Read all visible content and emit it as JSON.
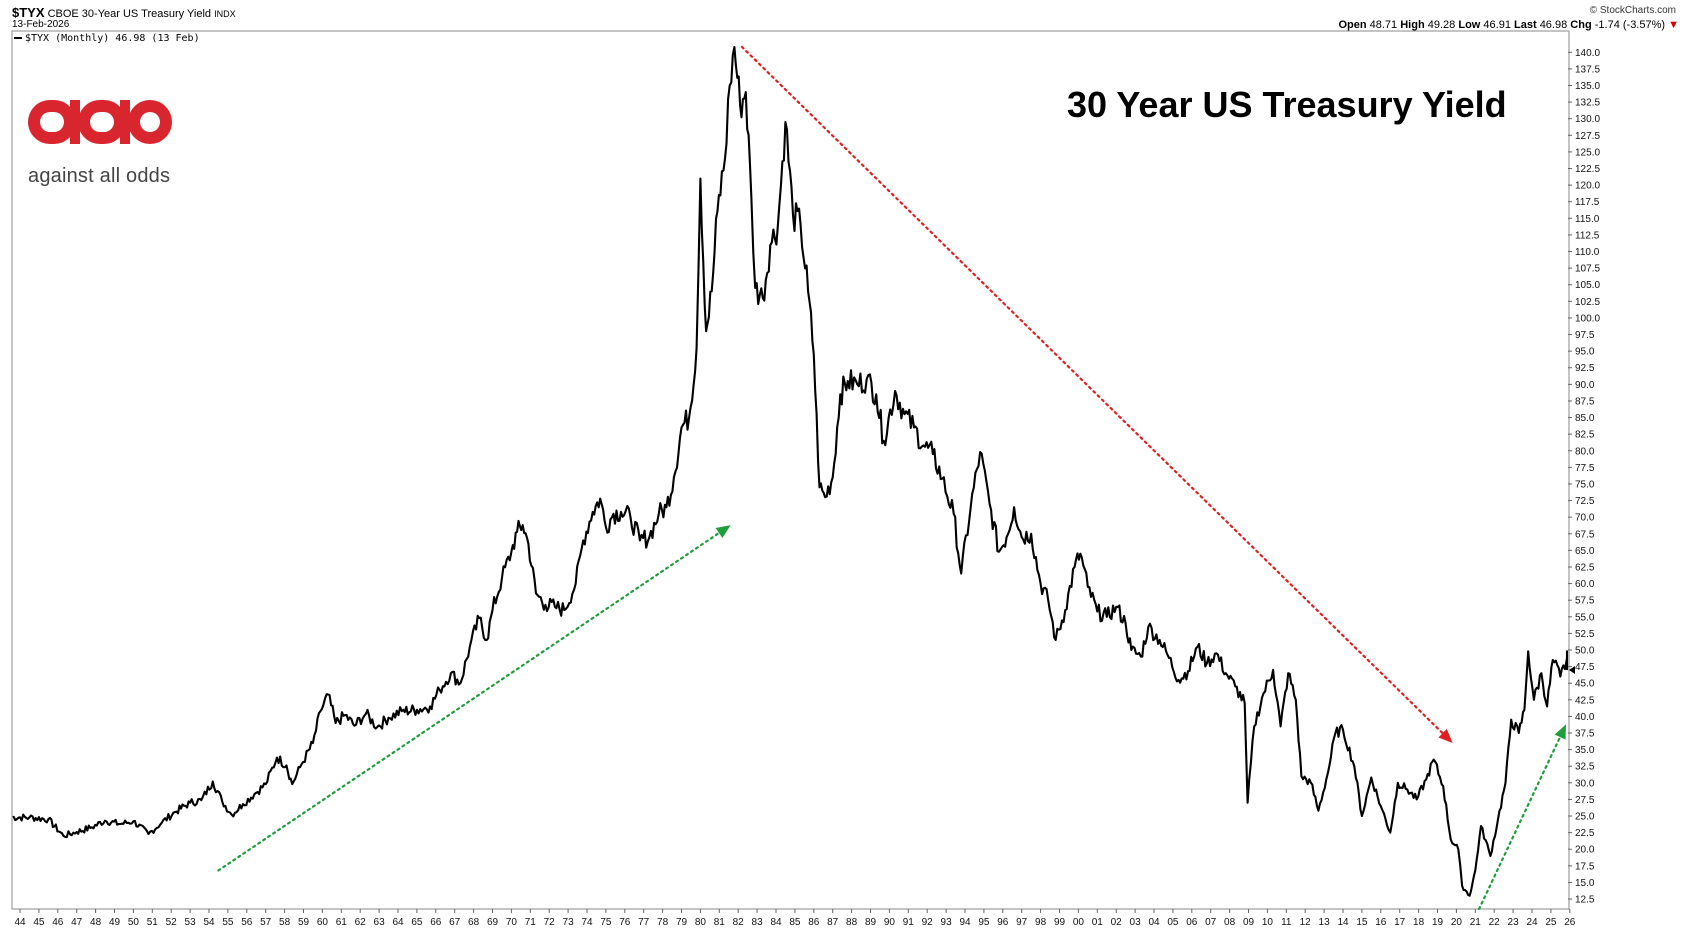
{
  "header": {
    "ticker": "$TYX",
    "description": "CBOE 30-Year US Treasury Yield",
    "exchange": "INDX",
    "date": "13-Feb-2026",
    "source": "© StockCharts.com",
    "open_label": "Open",
    "open": "48.71",
    "high_label": "High",
    "high": "49.28",
    "low_label": "Low",
    "low": "46.91",
    "last_label": "Last",
    "last": "46.98",
    "chg_label": "Chg",
    "chg": "-1.74 (-3.57%)",
    "chg_arrow": "▼"
  },
  "legend": {
    "text": "$TYX (Monthly) 46.98 (13 Feb)"
  },
  "logo": {
    "mark": "aao",
    "text": "against all odds",
    "color": "#d9262e"
  },
  "chart_data": {
    "type": "line",
    "title": "30 Year US Treasury Yield",
    "ylim": [
      11,
      142
    ],
    "yticks": [
      12.5,
      15.0,
      17.5,
      20.0,
      22.5,
      25.0,
      27.5,
      30.0,
      32.5,
      35.0,
      37.5,
      40.0,
      42.5,
      45.0,
      47.5,
      50.0,
      52.5,
      55.0,
      57.5,
      60.0,
      62.5,
      65.0,
      67.5,
      70.0,
      72.5,
      75.0,
      77.5,
      80.0,
      82.5,
      85.0,
      87.5,
      90.0,
      92.5,
      95.0,
      97.5,
      100.0,
      102.5,
      105.0,
      107.5,
      110.0,
      112.5,
      115.0,
      117.5,
      120.0,
      122.5,
      125.0,
      127.5,
      130.0,
      132.5,
      135.0,
      137.5,
      140.0
    ],
    "xlim": [
      1943.5,
      2026.3
    ],
    "xtick_labels": [
      "44",
      "45",
      "46",
      "47",
      "48",
      "49",
      "50",
      "51",
      "52",
      "53",
      "54",
      "55",
      "56",
      "57",
      "58",
      "59",
      "60",
      "61",
      "62",
      "63",
      "64",
      "65",
      "66",
      "67",
      "68",
      "69",
      "70",
      "71",
      "72",
      "73",
      "74",
      "75",
      "76",
      "77",
      "78",
      "79",
      "80",
      "81",
      "82",
      "83",
      "84",
      "85",
      "86",
      "87",
      "88",
      "89",
      "90",
      "91",
      "92",
      "93",
      "94",
      "95",
      "96",
      "97",
      "98",
      "99",
      "00",
      "01",
      "02",
      "03",
      "04",
      "05",
      "06",
      "07",
      "08",
      "09",
      "10",
      "11",
      "12",
      "13",
      "14",
      "15",
      "16",
      "17",
      "18",
      "19",
      "20",
      "21",
      "22",
      "23",
      "24",
      "25",
      "26"
    ],
    "series": [
      {
        "color": "#000000",
        "points": [
          [
            1943.5,
            24.8
          ],
          [
            1944.5,
            24.8
          ],
          [
            1945.5,
            24.5
          ],
          [
            1946.3,
            22.0
          ],
          [
            1947.0,
            22.6
          ],
          [
            1947.8,
            23.3
          ],
          [
            1948.5,
            24.3
          ],
          [
            1949.3,
            23.8
          ],
          [
            1950.0,
            24.2
          ],
          [
            1950.8,
            22.3
          ],
          [
            1951.5,
            24.0
          ],
          [
            1952.2,
            25.6
          ],
          [
            1953.0,
            27.0
          ],
          [
            1953.6,
            27.4
          ],
          [
            1954.2,
            30.2
          ],
          [
            1954.7,
            27.2
          ],
          [
            1955.2,
            25.2
          ],
          [
            1955.8,
            26.8
          ],
          [
            1956.4,
            28.3
          ],
          [
            1957.0,
            29.8
          ],
          [
            1957.6,
            33.8
          ],
          [
            1958.1,
            32.6
          ],
          [
            1958.4,
            29.8
          ],
          [
            1958.9,
            32.8
          ],
          [
            1959.5,
            36.0
          ],
          [
            1959.9,
            40.8
          ],
          [
            1960.3,
            43.3
          ],
          [
            1960.7,
            39.0
          ],
          [
            1961.2,
            40.2
          ],
          [
            1961.7,
            38.6
          ],
          [
            1962.3,
            40.4
          ],
          [
            1962.9,
            38.4
          ],
          [
            1963.5,
            39.8
          ],
          [
            1964.2,
            40.8
          ],
          [
            1965.0,
            41.0
          ],
          [
            1965.7,
            41.5
          ],
          [
            1966.2,
            44.0
          ],
          [
            1966.8,
            46.5
          ],
          [
            1967.3,
            45.0
          ],
          [
            1967.8,
            50.5
          ],
          [
            1968.3,
            54.8
          ],
          [
            1968.7,
            51.5
          ],
          [
            1969.0,
            56.0
          ],
          [
            1969.5,
            60.8
          ],
          [
            1970.0,
            64.8
          ],
          [
            1970.3,
            67.8
          ],
          [
            1970.6,
            68.8
          ],
          [
            1970.9,
            66.0
          ],
          [
            1971.3,
            58.5
          ],
          [
            1971.8,
            56.8
          ],
          [
            1972.3,
            56.5
          ],
          [
            1972.8,
            56.0
          ],
          [
            1973.4,
            60.0
          ],
          [
            1973.8,
            66.5
          ],
          [
            1974.3,
            70.8
          ],
          [
            1974.7,
            72.8
          ],
          [
            1975.0,
            68.5
          ],
          [
            1975.4,
            70.5
          ],
          [
            1975.8,
            70.8
          ],
          [
            1976.3,
            70.0
          ],
          [
            1976.8,
            66.5
          ],
          [
            1977.3,
            67.0
          ],
          [
            1977.8,
            70.5
          ],
          [
            1978.2,
            71.5
          ],
          [
            1978.6,
            76.0
          ],
          [
            1979.0,
            83.5
          ],
          [
            1979.4,
            85.0
          ],
          [
            1979.8,
            95.5
          ],
          [
            1980.0,
            121.0
          ],
          [
            1980.3,
            98.0
          ],
          [
            1980.6,
            104.0
          ],
          [
            1980.9,
            116.0
          ],
          [
            1981.3,
            124.0
          ],
          [
            1981.55,
            135.0
          ],
          [
            1981.8,
            140.8
          ],
          [
            1982.1,
            132.0
          ],
          [
            1982.4,
            134.0
          ],
          [
            1982.7,
            118.0
          ],
          [
            1982.9,
            104.5
          ],
          [
            1983.3,
            103.0
          ],
          [
            1983.7,
            111.0
          ],
          [
            1984.1,
            114.0
          ],
          [
            1984.5,
            129.5
          ],
          [
            1984.9,
            115.5
          ],
          [
            1985.3,
            114.0
          ],
          [
            1985.7,
            104.0
          ],
          [
            1986.0,
            94.5
          ],
          [
            1986.3,
            74.5
          ],
          [
            1986.6,
            73.0
          ],
          [
            1987.0,
            76.0
          ],
          [
            1987.4,
            88.5
          ],
          [
            1987.8,
            90.5
          ],
          [
            1988.3,
            90.0
          ],
          [
            1988.8,
            90.8
          ],
          [
            1989.3,
            88.5
          ],
          [
            1989.7,
            81.5
          ],
          [
            1990.3,
            89.0
          ],
          [
            1990.8,
            85.5
          ],
          [
            1991.3,
            83.5
          ],
          [
            1991.8,
            80.8
          ],
          [
            1992.3,
            79.5
          ],
          [
            1992.8,
            75.8
          ],
          [
            1993.4,
            70.5
          ],
          [
            1993.8,
            61.5
          ],
          [
            1994.3,
            71.5
          ],
          [
            1994.8,
            79.8
          ],
          [
            1995.3,
            72.0
          ],
          [
            1995.8,
            64.8
          ],
          [
            1996.2,
            67.0
          ],
          [
            1996.6,
            71.5
          ],
          [
            1997.0,
            67.0
          ],
          [
            1997.5,
            67.5
          ],
          [
            1998.0,
            60.0
          ],
          [
            1998.4,
            57.5
          ],
          [
            1998.8,
            51.5
          ],
          [
            1999.3,
            56.0
          ],
          [
            1999.8,
            62.5
          ],
          [
            2000.1,
            64.5
          ],
          [
            2000.5,
            59.5
          ],
          [
            2001.0,
            55.8
          ],
          [
            2001.5,
            55.0
          ],
          [
            2002.0,
            56.5
          ],
          [
            2002.5,
            54.0
          ],
          [
            2002.8,
            50.0
          ],
          [
            2003.3,
            49.0
          ],
          [
            2003.7,
            53.5
          ],
          [
            2004.3,
            51.5
          ],
          [
            2004.8,
            48.8
          ],
          [
            2005.3,
            45.5
          ],
          [
            2005.8,
            46.8
          ],
          [
            2006.3,
            50.5
          ],
          [
            2006.8,
            48.0
          ],
          [
            2007.3,
            49.5
          ],
          [
            2007.8,
            46.5
          ],
          [
            2008.3,
            44.5
          ],
          [
            2008.8,
            42.0
          ],
          [
            2008.95,
            27.0
          ],
          [
            2009.3,
            38.5
          ],
          [
            2009.8,
            43.5
          ],
          [
            2010.3,
            47.0
          ],
          [
            2010.7,
            38.5
          ],
          [
            2011.1,
            46.5
          ],
          [
            2011.5,
            42.5
          ],
          [
            2011.8,
            31.0
          ],
          [
            2012.3,
            30.0
          ],
          [
            2012.7,
            25.8
          ],
          [
            2013.2,
            31.5
          ],
          [
            2013.6,
            37.5
          ],
          [
            2014.0,
            38.0
          ],
          [
            2014.6,
            32.5
          ],
          [
            2015.0,
            25.0
          ],
          [
            2015.5,
            30.8
          ],
          [
            2016.0,
            26.5
          ],
          [
            2016.5,
            22.5
          ],
          [
            2016.9,
            30.0
          ],
          [
            2017.4,
            29.0
          ],
          [
            2017.9,
            27.5
          ],
          [
            2018.4,
            30.5
          ],
          [
            2018.8,
            33.5
          ],
          [
            2019.3,
            29.5
          ],
          [
            2019.7,
            21.5
          ],
          [
            2020.1,
            20.0
          ],
          [
            2020.3,
            14.5
          ],
          [
            2020.7,
            13.0
          ],
          [
            2021.0,
            16.8
          ],
          [
            2021.3,
            23.5
          ],
          [
            2021.8,
            19.0
          ],
          [
            2022.2,
            24.5
          ],
          [
            2022.6,
            30.0
          ],
          [
            2022.9,
            39.5
          ],
          [
            2023.3,
            37.5
          ],
          [
            2023.6,
            41.0
          ],
          [
            2023.8,
            49.8
          ],
          [
            2024.1,
            42.5
          ],
          [
            2024.5,
            46.5
          ],
          [
            2024.8,
            41.5
          ],
          [
            2025.1,
            48.5
          ],
          [
            2025.5,
            46.0
          ],
          [
            2025.9,
            48.8
          ],
          [
            2026.1,
            48.7
          ],
          [
            2026.12,
            46.98
          ]
        ]
      }
    ],
    "annotations": {
      "green_arrow_1": {
        "from": [
          1954.5,
          16.8
        ],
        "to": [
          1981.6,
          68.8
        ],
        "color": "#1e9e3a"
      },
      "red_arrow": {
        "from": [
          1982.2,
          140.8
        ],
        "to": [
          2019.8,
          36.0
        ],
        "color": "#e02020"
      },
      "green_arrow_2": {
        "from": [
          2021.2,
          11.0
        ],
        "to": [
          2025.8,
          38.8
        ],
        "color": "#1e9e3a"
      }
    }
  }
}
